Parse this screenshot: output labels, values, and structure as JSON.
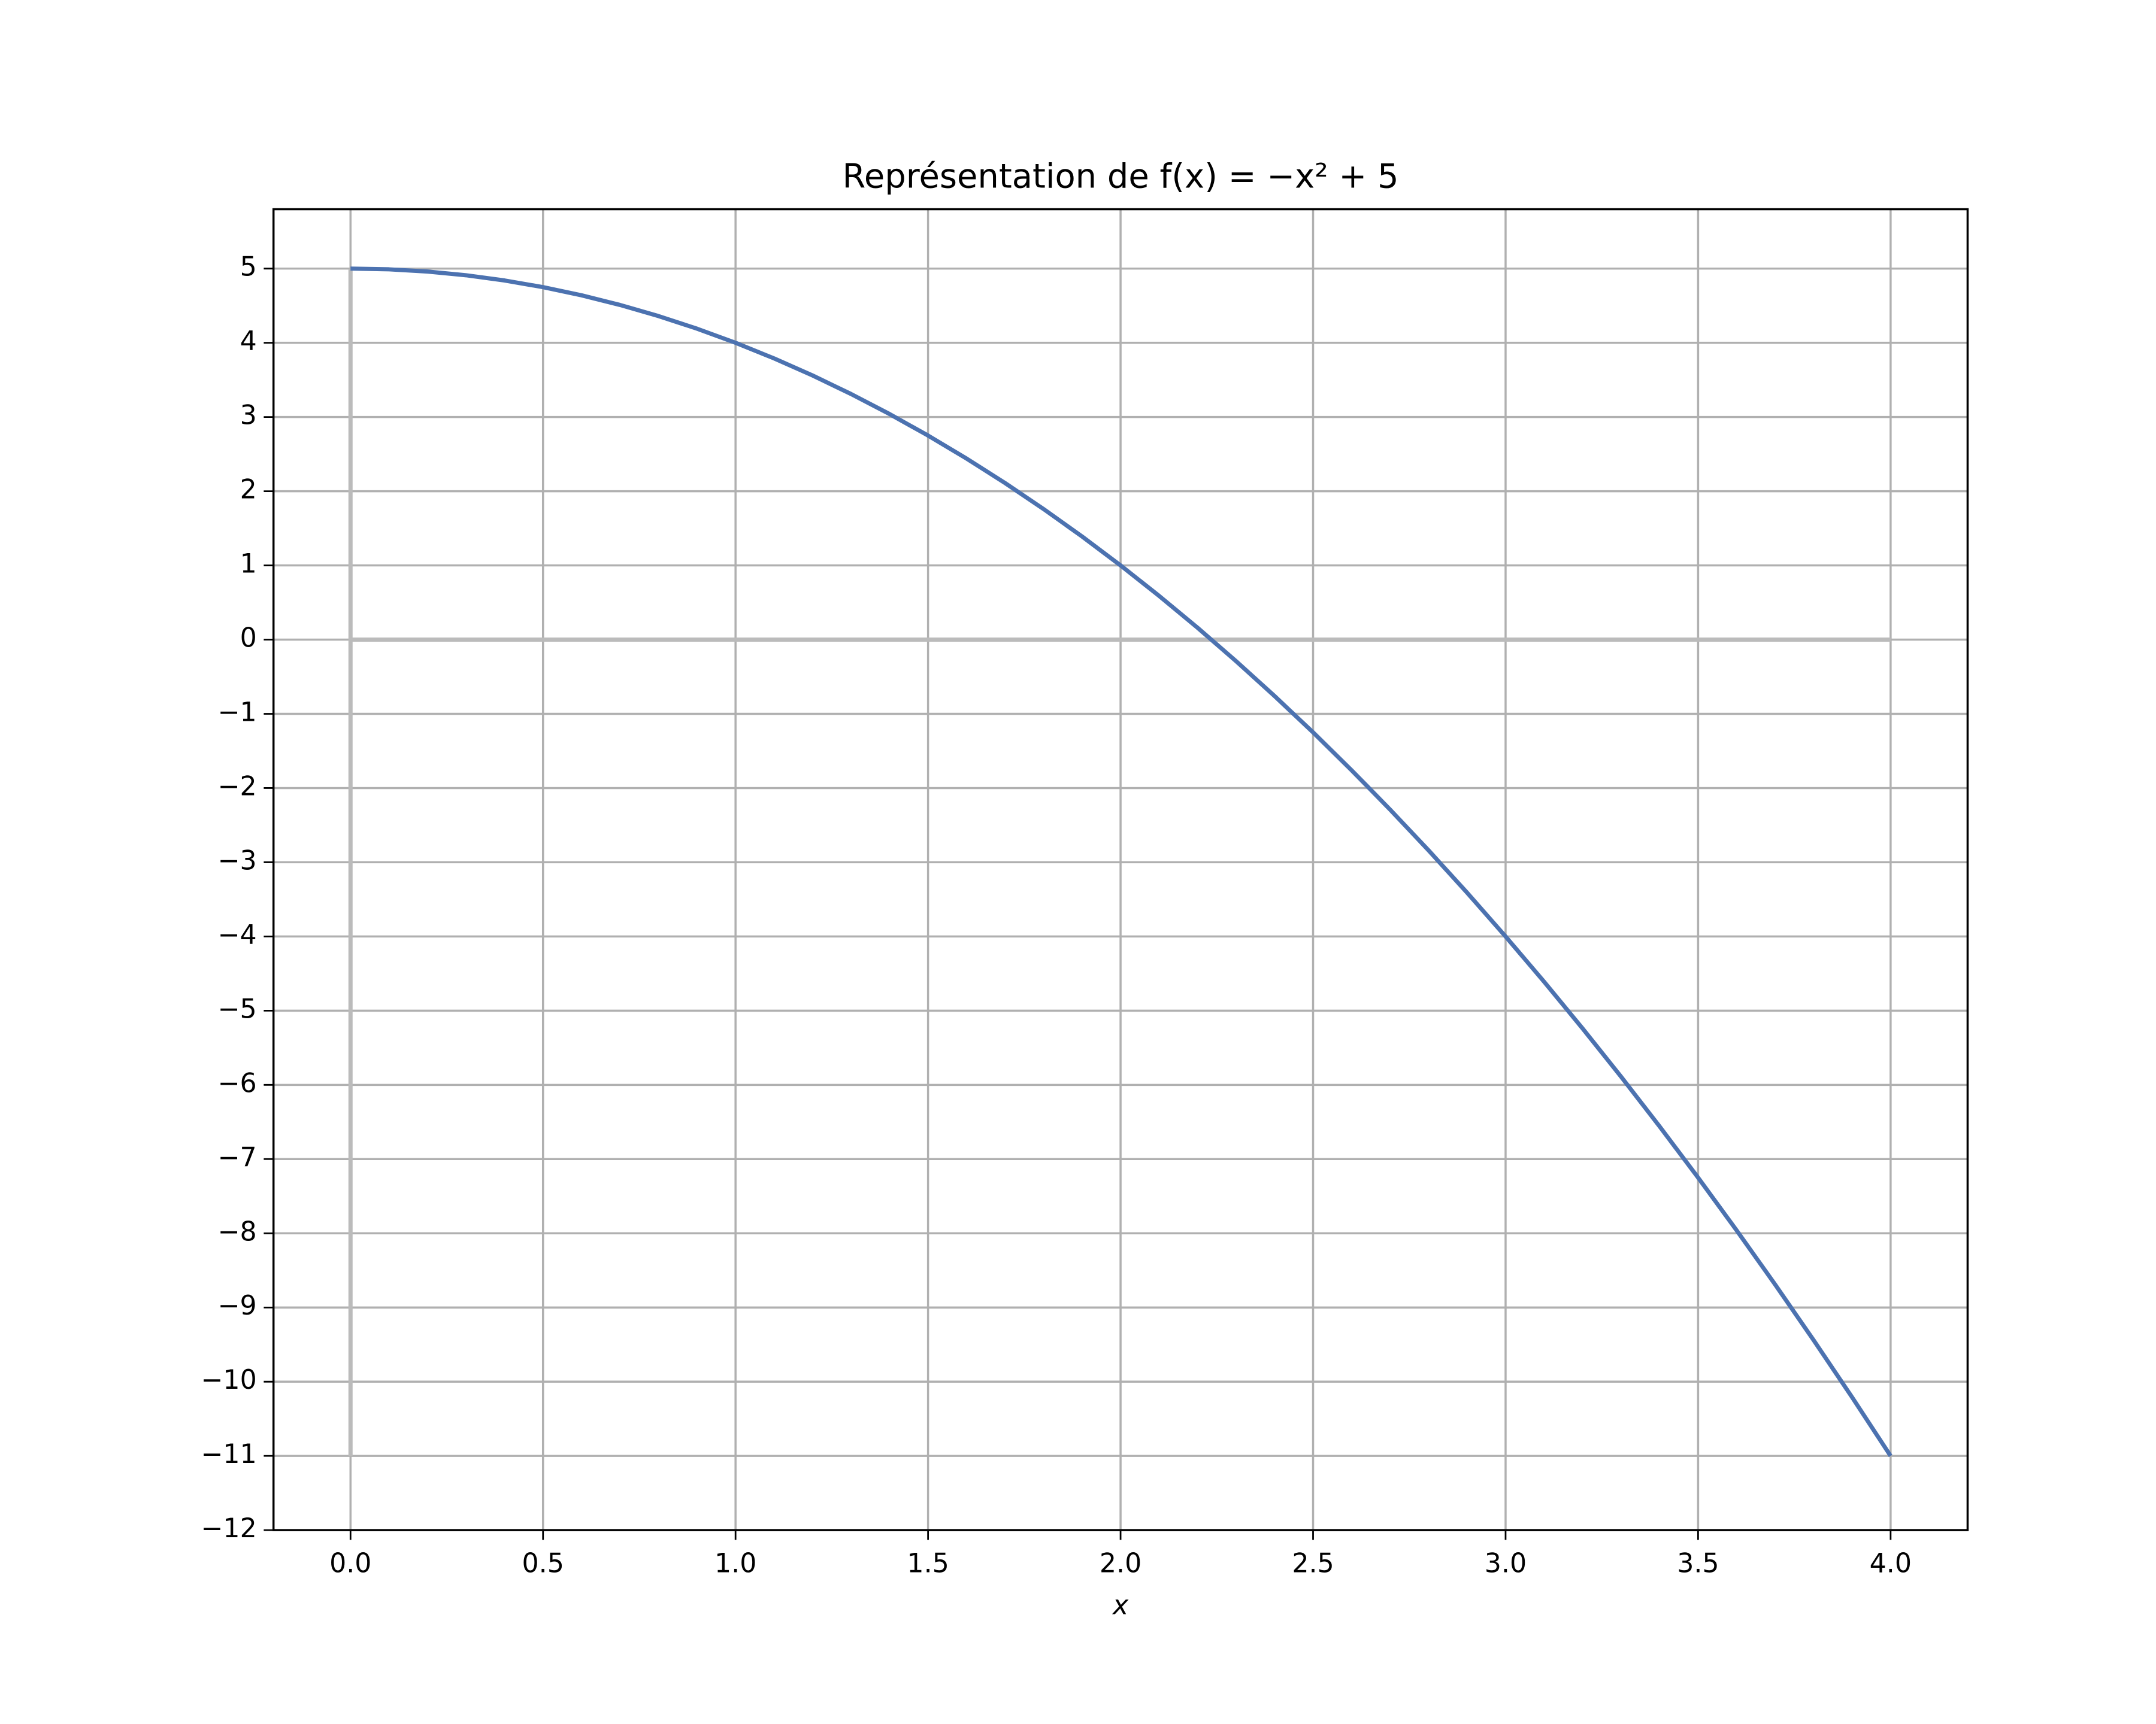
{
  "chart_data": {
    "type": "line",
    "title": "Représentation de f(x) = −x² + 5",
    "x_label": "x",
    "x": [
      0,
      0.1,
      0.2,
      0.3,
      0.4,
      0.5,
      0.6,
      0.7,
      0.8,
      0.9,
      1,
      1.1,
      1.2,
      1.3,
      1.4,
      1.5,
      1.6,
      1.7,
      1.8,
      1.9,
      2,
      2.1,
      2.2,
      2.3,
      2.4,
      2.5,
      2.6,
      2.7,
      2.8,
      2.9,
      3,
      3.1,
      3.2,
      3.3,
      3.4,
      3.5,
      3.6,
      3.7,
      3.8,
      3.9,
      4
    ],
    "series": [
      {
        "color": "#4c72b0",
        "values": [
          5,
          4.99,
          4.96,
          4.91,
          4.84,
          4.75,
          4.64,
          4.51,
          4.36,
          4.19,
          4,
          3.79,
          3.56,
          3.31,
          3.04,
          2.75,
          2.44,
          2.11,
          1.76,
          1.39,
          1,
          0.59,
          0.16,
          -0.29,
          -0.76,
          -1.25,
          -1.76,
          -2.29,
          -2.84,
          -3.41,
          -4,
          -4.61,
          -5.24,
          -5.89,
          -6.56,
          -7.25,
          -7.96,
          -8.69,
          -9.44,
          -10.21,
          -11
        ]
      }
    ],
    "axhline": {
      "y": 0,
      "xmin": 0,
      "xmax": 4,
      "color": "#bbbbbb"
    },
    "axvline": {
      "x": 0,
      "ymin": -11,
      "ymax": 5,
      "color": "#bbbbbb"
    },
    "xlim": [
      -0.2,
      4.2
    ],
    "xticks": [
      {
        "value": 0,
        "label": "0.0"
      },
      {
        "value": 0.5,
        "label": "0.5"
      },
      {
        "value": 1,
        "label": "1.0"
      },
      {
        "value": 1.5,
        "label": "1.5"
      },
      {
        "value": 2,
        "label": "2.0"
      },
      {
        "value": 2.5,
        "label": "2.5"
      },
      {
        "value": 3,
        "label": "3.0"
      },
      {
        "value": 3.5,
        "label": "3.5"
      },
      {
        "value": 4,
        "label": "4.0"
      }
    ],
    "ylim": [
      -12,
      5.8
    ],
    "yticks": [
      {
        "value": -12,
        "label": "−12"
      },
      {
        "value": -11,
        "label": "−11"
      },
      {
        "value": -10,
        "label": "−10"
      },
      {
        "value": -9,
        "label": "−9"
      },
      {
        "value": -8,
        "label": "−8"
      },
      {
        "value": -7,
        "label": "−7"
      },
      {
        "value": -6,
        "label": "−6"
      },
      {
        "value": -5,
        "label": "−5"
      },
      {
        "value": -4,
        "label": "−4"
      },
      {
        "value": -3,
        "label": "−3"
      },
      {
        "value": -2,
        "label": "−2"
      },
      {
        "value": -1,
        "label": "−1"
      },
      0,
      1,
      2,
      3,
      4,
      5
    ],
    "grid": true
  }
}
